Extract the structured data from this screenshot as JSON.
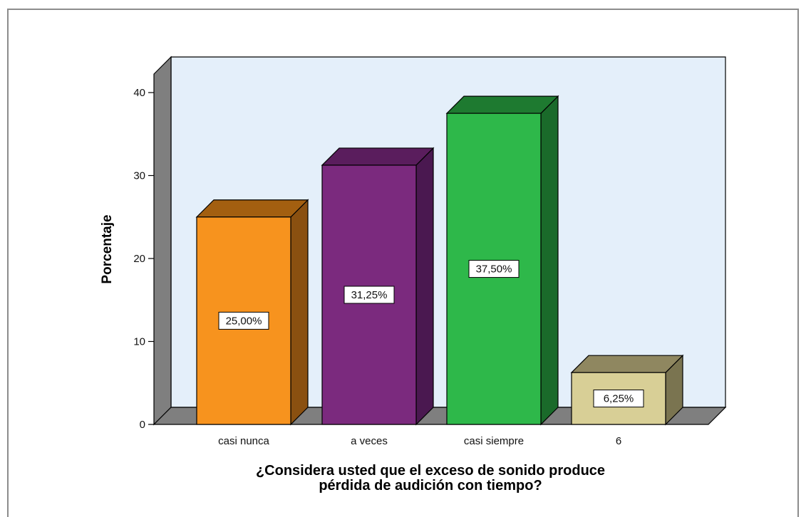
{
  "chart_data": {
    "type": "bar",
    "style": "3d",
    "categories": [
      "casi nunca",
      "a veces",
      "casi siempre",
      "6"
    ],
    "values": [
      25.0,
      31.25,
      37.5,
      6.25
    ],
    "data_labels": [
      "25,00%",
      "31,25%",
      "37,50%",
      "6,25%"
    ],
    "colors": [
      "#f7931e",
      "#7b2a7e",
      "#2eb84a",
      "#d8cf96"
    ],
    "top_colors": [
      "#a35f10",
      "#5a1d5d",
      "#1e7a30",
      "#8f8760"
    ],
    "side_colors": [
      "#8a5010",
      "#4a1850",
      "#1a6a2a",
      "#7a7450"
    ],
    "ylabel": "Porcentaje",
    "xlabel_lines": [
      "¿Considera usted que el exceso de sonido produce",
      "pérdida de audición  con  tiempo?"
    ],
    "y_ticks": [
      0,
      10,
      20,
      30,
      40
    ],
    "ylim": [
      0,
      40
    ],
    "plot_background": "#e4effa",
    "wall_color": "#7f7f7f",
    "grid": false
  }
}
